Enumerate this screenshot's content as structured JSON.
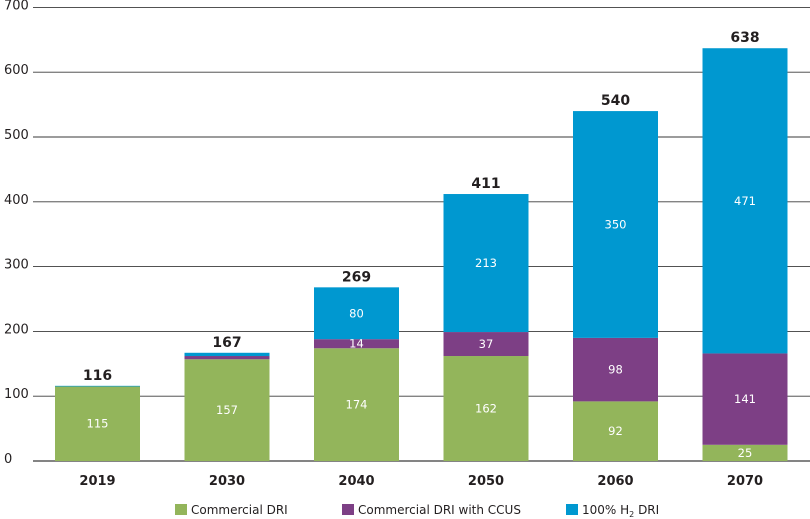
{
  "chart_data": {
    "type": "bar",
    "stacked": true,
    "categories": [
      "2019",
      "2030",
      "2040",
      "2050",
      "2060",
      "2070"
    ],
    "series": [
      {
        "name": "Commercial DRI",
        "color": "#93b55b",
        "values": [
          115,
          157,
          174,
          162,
          92,
          25
        ]
      },
      {
        "name": "Commercial DRI with CCUS",
        "color": "#7d3f85",
        "values": [
          0,
          5,
          14,
          37,
          98,
          141
        ]
      },
      {
        "name": "100% H2 DRI",
        "name_main": "100% H",
        "name_sub": "2",
        "name_tail": " DRI",
        "color": "#0098d0",
        "values": [
          1,
          5,
          80,
          213,
          350,
          471
        ]
      }
    ],
    "segment_labels": [
      [
        "115",
        "157",
        "174",
        "162",
        "92",
        "25"
      ],
      [
        "",
        "",
        "14",
        "37",
        "98",
        "141"
      ],
      [
        "",
        "",
        "80",
        "213",
        "350",
        "471"
      ]
    ],
    "totals": [
      "116",
      "167",
      "269",
      "411",
      "540",
      "638"
    ],
    "yticks": [
      0,
      100,
      200,
      300,
      400,
      500,
      600,
      700
    ],
    "ylim": [
      0,
      700
    ],
    "grid": true,
    "legend_position": "bottom"
  }
}
